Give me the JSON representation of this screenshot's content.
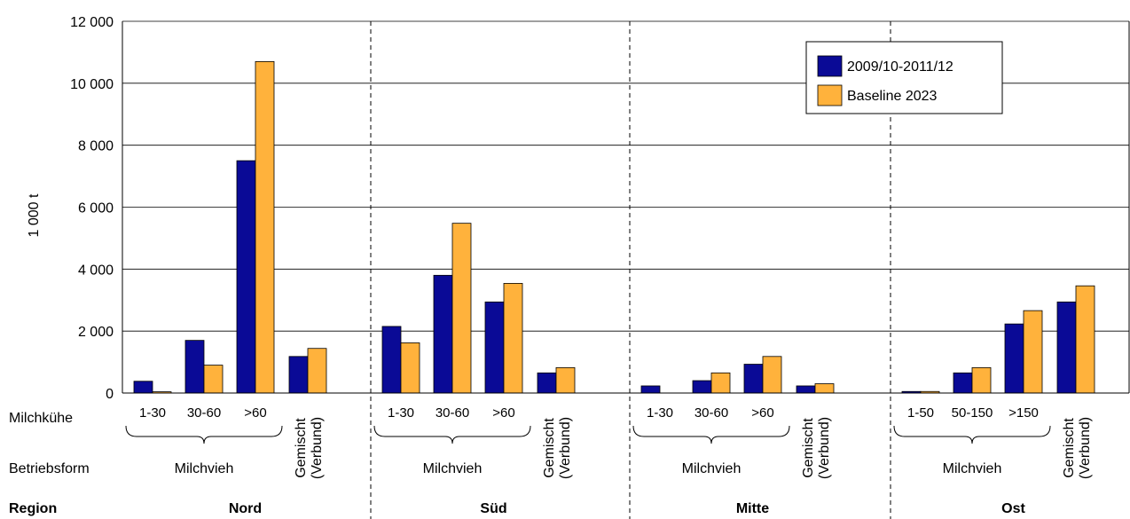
{
  "chart_data": {
    "type": "bar",
    "ylabel": "1 000 t",
    "ylim": [
      0,
      12000
    ],
    "yticks": [
      0,
      2000,
      4000,
      6000,
      8000,
      10000,
      12000
    ],
    "ytick_labels": [
      "0",
      "2 000",
      "4 000",
      "6 000",
      "8 000",
      "10 000",
      "12 000"
    ],
    "grid": true,
    "legend_position": "top-right",
    "row_labels": {
      "milchkuehe": "Milchkühe",
      "betriebsform": "Betriebsform",
      "region": "Region"
    },
    "series": [
      {
        "name": "2009/10-2011/12",
        "color": "#0a0a96"
      },
      {
        "name": "Baseline 2023",
        "color": "#ffb23c"
      }
    ],
    "regions": [
      {
        "name": "Nord",
        "milchvieh_label": "Milchvieh",
        "gemischt_label": [
          "Gemischt",
          "(Verbund)"
        ],
        "categories": [
          "1-30",
          "30-60",
          ">60",
          ""
        ],
        "values": [
          [
            380,
            40
          ],
          [
            1700,
            900
          ],
          [
            7500,
            10700
          ],
          [
            1180,
            1440
          ]
        ]
      },
      {
        "name": "Süd",
        "milchvieh_label": "Milchvieh",
        "gemischt_label": [
          "Gemischt",
          "(Verbund)"
        ],
        "categories": [
          "1-30",
          "30-60",
          ">60",
          ""
        ],
        "values": [
          [
            2150,
            1620
          ],
          [
            3800,
            5480
          ],
          [
            2940,
            3540
          ],
          [
            650,
            820
          ]
        ]
      },
      {
        "name": "Mitte",
        "milchvieh_label": "Milchvieh",
        "gemischt_label": [
          "Gemischt",
          "(Verbund)"
        ],
        "categories": [
          "1-30",
          "30-60",
          ">60",
          ""
        ],
        "values": [
          [
            230,
            0
          ],
          [
            400,
            650
          ],
          [
            930,
            1180
          ],
          [
            230,
            300
          ]
        ]
      },
      {
        "name": "Ost",
        "milchvieh_label": "Milchvieh",
        "gemischt_label": [
          "Gemischt",
          "(Verbund)"
        ],
        "categories": [
          "1-50",
          "50-150",
          ">150",
          ""
        ],
        "values": [
          [
            50,
            50
          ],
          [
            650,
            820
          ],
          [
            2230,
            2660
          ],
          [
            2940,
            3460
          ]
        ]
      }
    ]
  }
}
